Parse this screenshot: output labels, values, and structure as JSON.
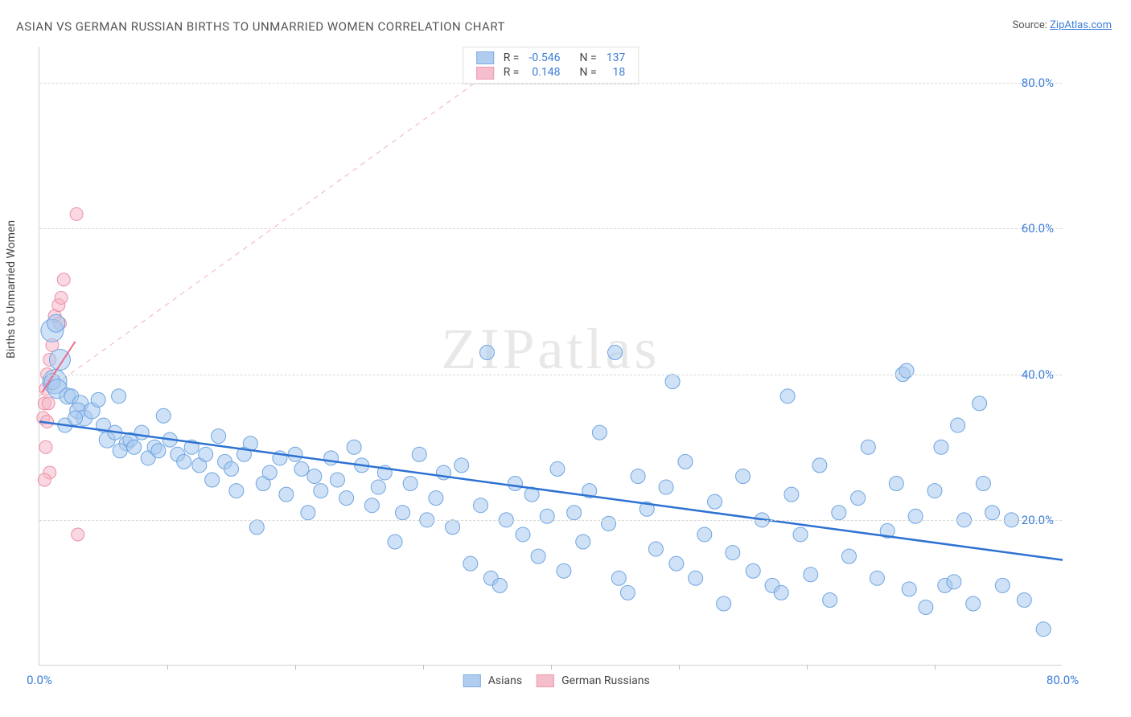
{
  "title": "ASIAN VS GERMAN RUSSIAN BIRTHS TO UNMARRIED WOMEN CORRELATION CHART",
  "source_label": "Source: ",
  "source_link_text": "ZipAtlas.com",
  "ylabel": "Births to Unmarried Women",
  "watermark_a": "ZIP",
  "watermark_b": "atlas",
  "chart": {
    "type": "scatter",
    "xlim": [
      0,
      80
    ],
    "ylim": [
      0,
      85
    ],
    "xticks": [
      0,
      80
    ],
    "xtick_labels": [
      "0.0%",
      "80.0%"
    ],
    "xtick_minor": [
      10,
      20,
      30,
      40,
      50,
      60,
      70
    ],
    "yticks": [
      20,
      40,
      60,
      80
    ],
    "ytick_labels": [
      "20.0%",
      "40.0%",
      "60.0%",
      "80.0%"
    ],
    "background_color": "#ffffff",
    "grid_color": "#d8d8d8",
    "series_a": {
      "name": "Asians",
      "fill": "#a8c8ef",
      "stroke": "#6fa5e0",
      "fill_opacity": 0.55,
      "regression": {
        "x1": 0,
        "y1": 33.5,
        "x2": 80,
        "y2": 14.5,
        "color": "#2d72d2",
        "width": 2.5
      },
      "R_label": "R =",
      "R_value": "-0.546",
      "N_label": "N =",
      "N_value": "137",
      "points": [
        [
          1.0,
          46,
          14
        ],
        [
          1.3,
          47,
          11
        ],
        [
          1.6,
          42,
          13
        ],
        [
          1.2,
          39,
          15
        ],
        [
          1.0,
          39,
          10
        ],
        [
          1.4,
          38,
          12
        ],
        [
          2.2,
          37,
          10
        ],
        [
          2.5,
          37,
          9
        ],
        [
          3.2,
          36,
          10
        ],
        [
          3.0,
          35,
          10
        ],
        [
          3.5,
          34,
          10
        ],
        [
          2.0,
          33,
          9
        ],
        [
          2.8,
          34,
          9
        ],
        [
          4.1,
          35,
          10
        ],
        [
          4.6,
          36.5,
          9
        ],
        [
          5.0,
          33,
          9
        ],
        [
          5.3,
          31,
          10
        ],
        [
          5.9,
          32,
          9
        ],
        [
          6.2,
          37,
          9
        ],
        [
          6.8,
          30.5,
          9
        ],
        [
          6.3,
          29.5,
          9
        ],
        [
          7.1,
          31,
          9
        ],
        [
          7.4,
          30,
          9
        ],
        [
          8.0,
          32,
          9
        ],
        [
          8.5,
          28.5,
          9
        ],
        [
          9.0,
          30,
          9
        ],
        [
          9.3,
          29.5,
          9
        ],
        [
          9.7,
          34.3,
          9
        ],
        [
          10.2,
          31,
          9
        ],
        [
          10.8,
          29,
          9
        ],
        [
          11.3,
          28,
          9
        ],
        [
          11.9,
          30,
          9
        ],
        [
          12.5,
          27.5,
          9
        ],
        [
          13.0,
          29,
          9
        ],
        [
          13.5,
          25.5,
          9
        ],
        [
          14.0,
          31.5,
          9
        ],
        [
          14.5,
          28,
          9
        ],
        [
          15.0,
          27,
          9
        ],
        [
          15.4,
          24,
          9
        ],
        [
          16.0,
          29,
          9
        ],
        [
          16.5,
          30.5,
          9
        ],
        [
          17.0,
          19,
          9
        ],
        [
          17.5,
          25,
          9
        ],
        [
          18.0,
          26.5,
          9
        ],
        [
          18.8,
          28.5,
          9
        ],
        [
          19.3,
          23.5,
          9
        ],
        [
          20.0,
          29,
          9
        ],
        [
          20.5,
          27,
          9
        ],
        [
          21.0,
          21,
          9
        ],
        [
          21.5,
          26,
          9
        ],
        [
          22.0,
          24,
          9
        ],
        [
          22.8,
          28.5,
          9
        ],
        [
          23.3,
          25.5,
          9
        ],
        [
          24.0,
          23,
          9
        ],
        [
          24.6,
          30,
          9
        ],
        [
          25.2,
          27.5,
          9
        ],
        [
          26.0,
          22,
          9
        ],
        [
          26.5,
          24.5,
          9
        ],
        [
          27.0,
          26.5,
          9
        ],
        [
          27.8,
          17,
          9
        ],
        [
          28.4,
          21,
          9
        ],
        [
          29.0,
          25,
          9
        ],
        [
          29.7,
          29,
          9
        ],
        [
          30.3,
          20,
          9
        ],
        [
          31.0,
          23,
          9
        ],
        [
          31.6,
          26.5,
          9
        ],
        [
          32.3,
          19,
          9
        ],
        [
          33.0,
          27.5,
          9
        ],
        [
          33.7,
          14,
          9
        ],
        [
          34.5,
          22,
          9
        ],
        [
          35.0,
          43,
          9
        ],
        [
          35.3,
          12,
          9
        ],
        [
          36.0,
          11,
          9
        ],
        [
          36.5,
          20,
          9
        ],
        [
          37.2,
          25,
          9
        ],
        [
          37.8,
          18,
          9
        ],
        [
          38.5,
          23.5,
          9
        ],
        [
          39.0,
          15,
          9
        ],
        [
          39.7,
          20.5,
          9
        ],
        [
          40.5,
          27,
          9
        ],
        [
          41.0,
          13,
          9
        ],
        [
          41.8,
          21,
          9
        ],
        [
          42.5,
          17,
          9
        ],
        [
          43.0,
          24,
          9
        ],
        [
          43.8,
          32,
          9
        ],
        [
          44.5,
          19.5,
          9
        ],
        [
          45.0,
          43,
          9
        ],
        [
          45.3,
          12,
          9
        ],
        [
          46.0,
          10,
          9
        ],
        [
          46.8,
          26,
          9
        ],
        [
          47.5,
          21.5,
          9
        ],
        [
          48.2,
          16,
          9
        ],
        [
          49.0,
          24.5,
          9
        ],
        [
          49.5,
          39,
          9
        ],
        [
          49.8,
          14,
          9
        ],
        [
          50.5,
          28,
          9
        ],
        [
          51.3,
          12,
          9
        ],
        [
          52.0,
          18,
          9
        ],
        [
          52.8,
          22.5,
          9
        ],
        [
          53.5,
          8.5,
          9
        ],
        [
          54.2,
          15.5,
          9
        ],
        [
          55.0,
          26,
          9
        ],
        [
          55.8,
          13,
          9
        ],
        [
          56.5,
          20,
          9
        ],
        [
          57.3,
          11,
          9
        ],
        [
          58.0,
          10,
          9
        ],
        [
          58.5,
          37,
          9
        ],
        [
          58.8,
          23.5,
          9
        ],
        [
          59.5,
          18,
          9
        ],
        [
          60.3,
          12.5,
          9
        ],
        [
          61.0,
          27.5,
          9
        ],
        [
          61.8,
          9,
          9
        ],
        [
          62.5,
          21,
          9
        ],
        [
          63.3,
          15,
          9
        ],
        [
          64.0,
          23,
          9
        ],
        [
          64.8,
          30,
          9
        ],
        [
          65.5,
          12,
          9
        ],
        [
          66.3,
          18.5,
          9
        ],
        [
          67.0,
          25,
          9
        ],
        [
          67.5,
          40,
          9
        ],
        [
          67.8,
          40.5,
          9
        ],
        [
          68.0,
          10.5,
          9
        ],
        [
          68.5,
          20.5,
          9
        ],
        [
          69.3,
          8,
          9
        ],
        [
          70.0,
          24,
          9
        ],
        [
          70.5,
          30,
          9
        ],
        [
          70.8,
          11,
          9
        ],
        [
          71.5,
          11.5,
          9
        ],
        [
          71.8,
          33,
          9
        ],
        [
          72.3,
          20,
          9
        ],
        [
          73.0,
          8.5,
          9
        ],
        [
          73.5,
          36,
          9
        ],
        [
          73.8,
          25,
          9
        ],
        [
          74.5,
          21,
          9
        ],
        [
          75.3,
          11,
          9
        ],
        [
          76.0,
          20,
          9
        ],
        [
          77.0,
          9,
          9
        ],
        [
          78.5,
          5,
          9
        ]
      ]
    },
    "series_b": {
      "name": "German Russians",
      "fill": "#f5b8c8",
      "stroke": "#eb8fa8",
      "fill_opacity": 0.55,
      "regression": {
        "x1": 0.2,
        "y1": 37.5,
        "x2": 2.8,
        "y2": 44.5,
        "color": "#eb6b8e",
        "width": 2
      },
      "diagonal": {
        "x1": 0,
        "y1": 37,
        "x2": 38,
        "y2": 85,
        "color": "#f2c1cd",
        "dash": "6,6",
        "width": 1.3
      },
      "R_label": "R =",
      "R_value": "0.148",
      "N_label": "N =",
      "N_value": "18",
      "points": [
        [
          0.3,
          34,
          8
        ],
        [
          0.4,
          36,
          8
        ],
        [
          0.6,
          33.5,
          8
        ],
        [
          0.5,
          38,
          8
        ],
        [
          0.6,
          40,
          8
        ],
        [
          0.8,
          42,
          8
        ],
        [
          0.7,
          36,
          8
        ],
        [
          0.8,
          26.5,
          8
        ],
        [
          0.4,
          25.5,
          8
        ],
        [
          1.0,
          44,
          8
        ],
        [
          1.2,
          48,
          8
        ],
        [
          1.5,
          49.5,
          8
        ],
        [
          1.7,
          50.5,
          8
        ],
        [
          1.6,
          47,
          8
        ],
        [
          1.9,
          53,
          8
        ],
        [
          0.5,
          30,
          8
        ],
        [
          2.9,
          62,
          8
        ],
        [
          3.0,
          18,
          8
        ]
      ]
    }
  },
  "legend_bottom_a": "Asians",
  "legend_bottom_b": "German Russians"
}
